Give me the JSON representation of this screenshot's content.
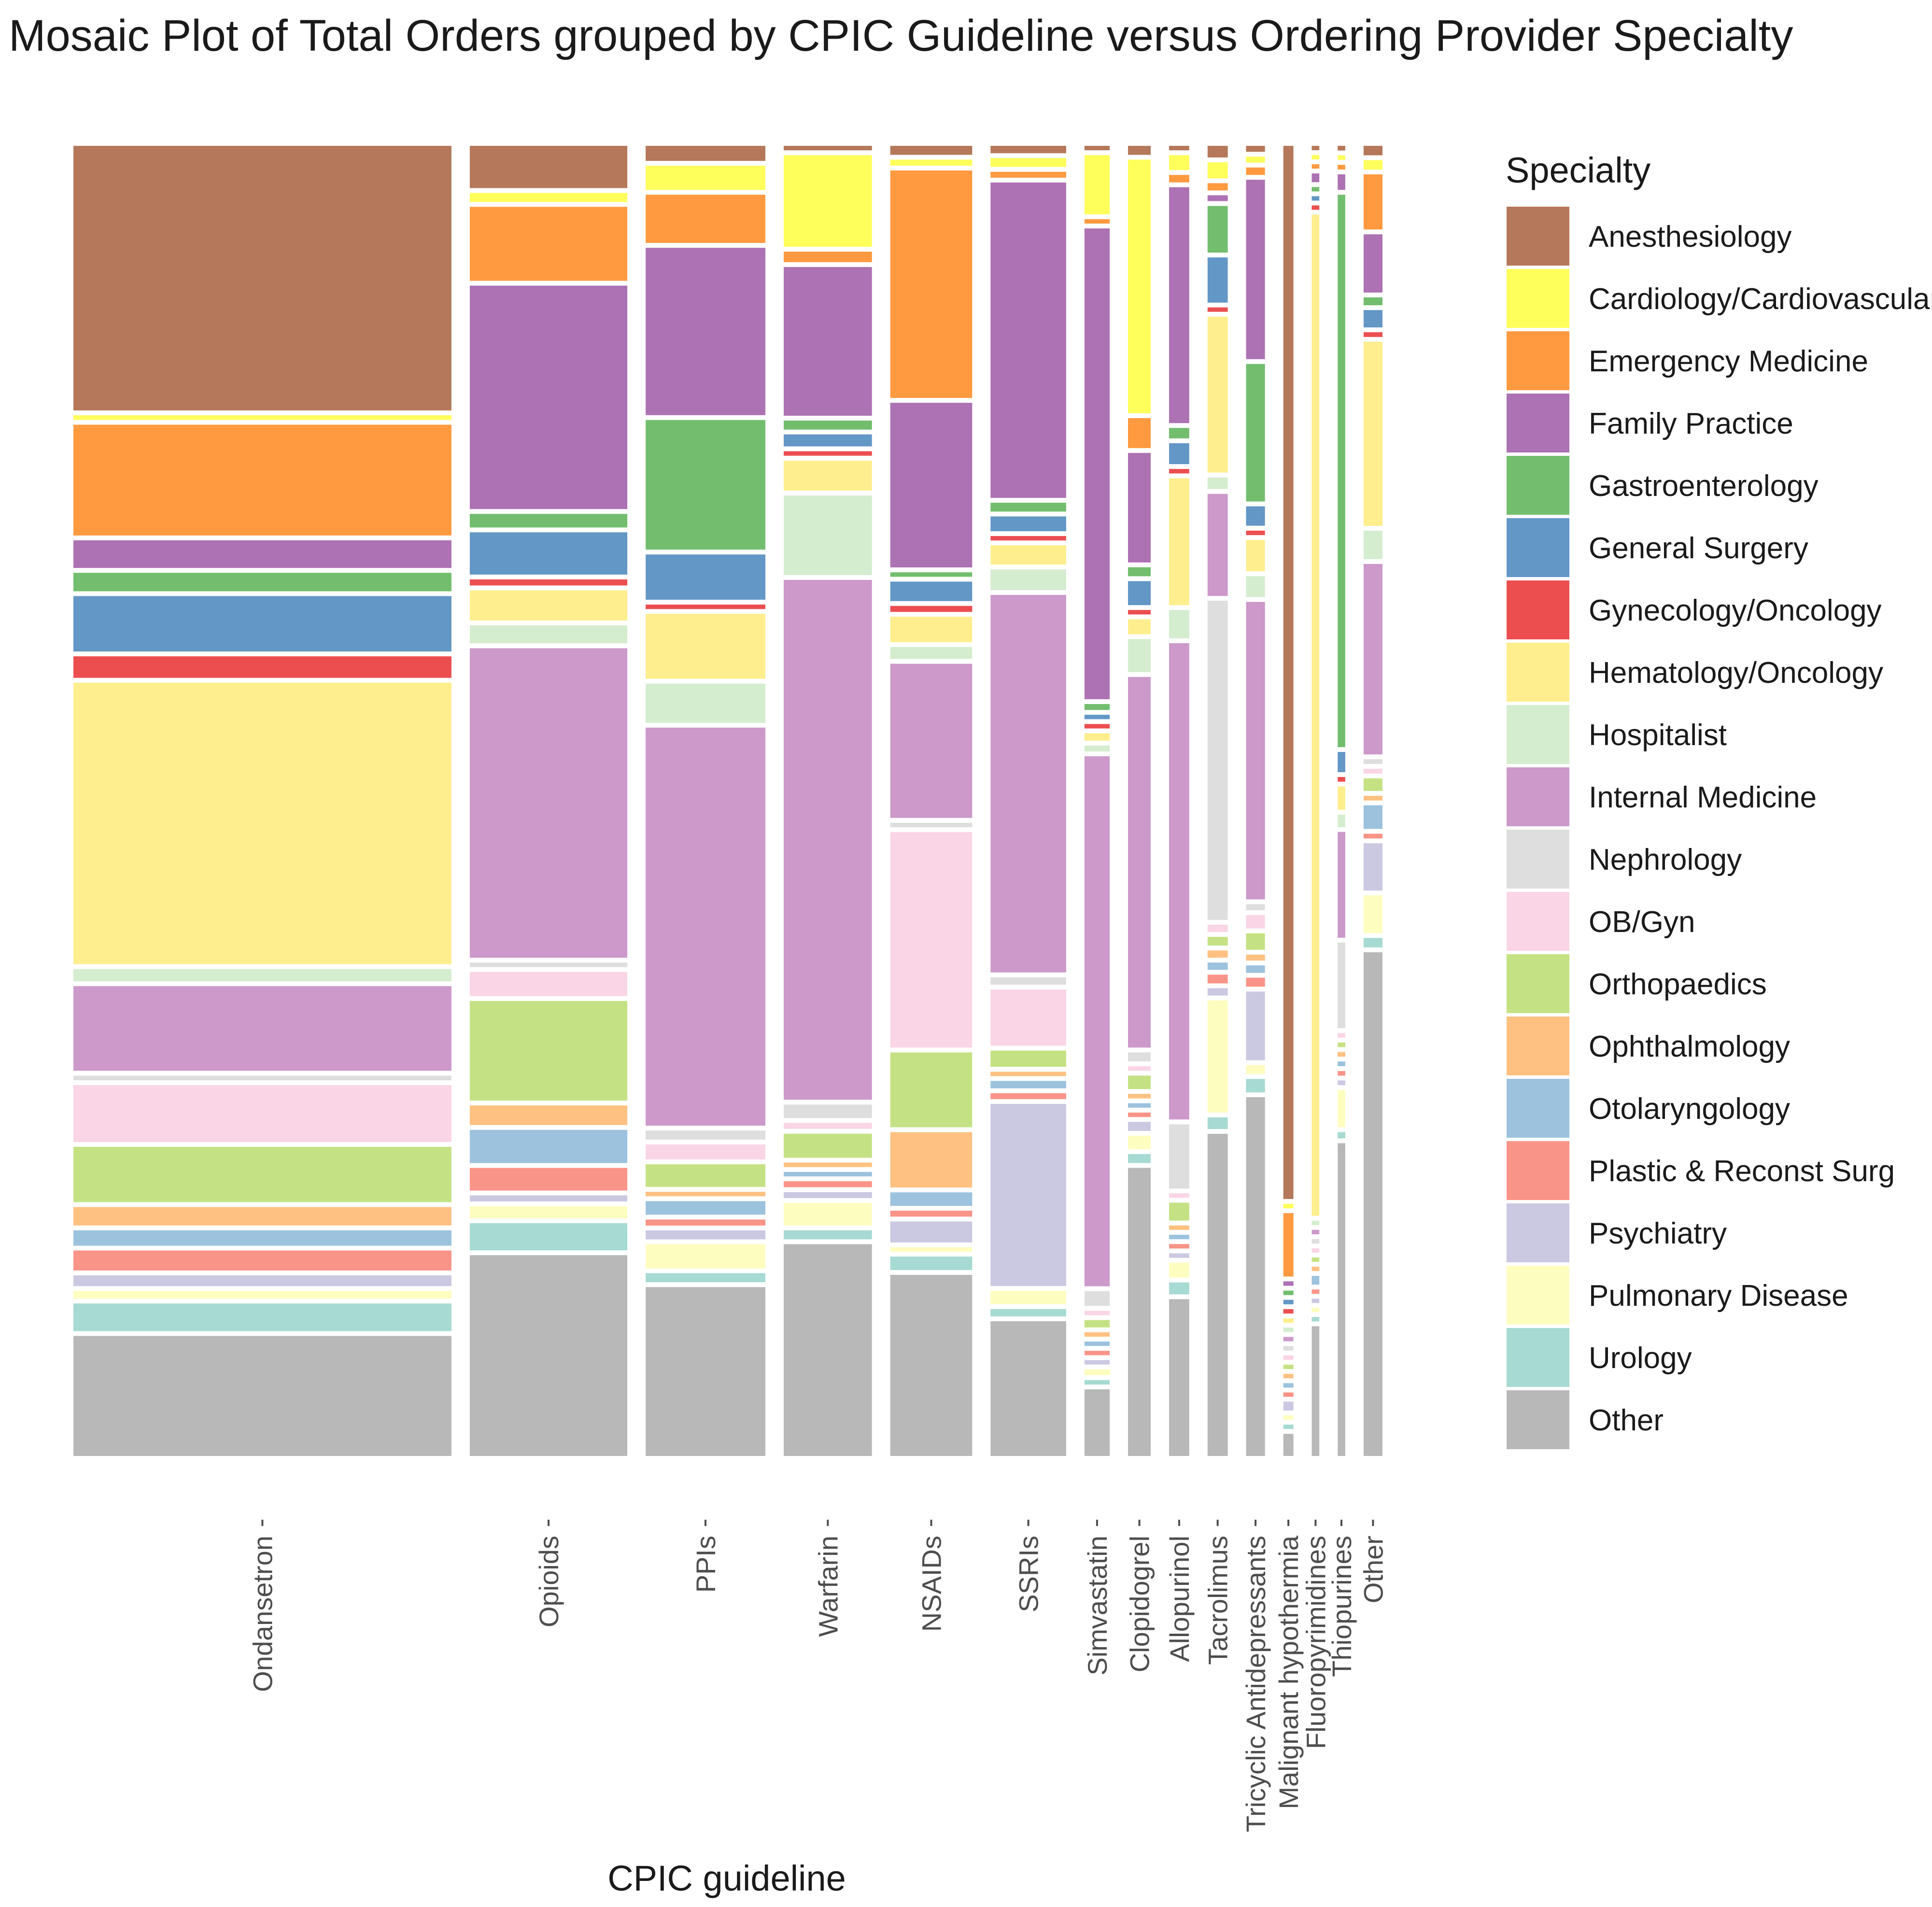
{
  "chart_data": {
    "type": "mosaic",
    "title": "Mosaic Plot of Total Orders grouped by CPIC Guideline versus Ordering Provider Specialty",
    "xlabel": "CPIC guideline",
    "legend_title": "Specialty",
    "legend_position": "right",
    "specialties": [
      {
        "name": "Anesthesiology",
        "color": "#B5785A"
      },
      {
        "name": "Cardiology/Cardiovascular",
        "color": "#FFFF5C"
      },
      {
        "name": "Emergency Medicine",
        "color": "#FF9A40"
      },
      {
        "name": "Family Practice",
        "color": "#AD72B3"
      },
      {
        "name": "Gastroenterology",
        "color": "#72BE6E"
      },
      {
        "name": "General Surgery",
        "color": "#6397C6"
      },
      {
        "name": "Gynecology/Oncology",
        "color": "#EC4E50"
      },
      {
        "name": "Hematology/Oncology",
        "color": "#FFEE8E"
      },
      {
        "name": "Hospitalist",
        "color": "#D4EDCF"
      },
      {
        "name": "Internal Medicine",
        "color": "#CC99CA"
      },
      {
        "name": "Nephrology",
        "color": "#DEDEDE"
      },
      {
        "name": "OB/Gyn",
        "color": "#FAD5E6"
      },
      {
        "name": "Orthopaedics",
        "color": "#C4E284"
      },
      {
        "name": "Ophthalmology",
        "color": "#FFC182"
      },
      {
        "name": "Otolaryngology",
        "color": "#9CC2DE"
      },
      {
        "name": "Plastic & Reconst Surg",
        "color": "#F99488"
      },
      {
        "name": "Psychiatry",
        "color": "#CBC8E2"
      },
      {
        "name": "Pulmonary Disease",
        "color": "#FEFDC0"
      },
      {
        "name": "Urology",
        "color": "#A6DAD2"
      },
      {
        "name": "Other",
        "color": "#B8B8B8"
      }
    ],
    "guidelines": [
      {
        "name": "Ondansetron",
        "width": 30.0,
        "values": [
          17.2,
          0.3,
          7.2,
          1.8,
          1.2,
          3.6,
          1.4,
          18.3,
          0.8,
          5.5,
          0.3,
          3.7,
          3.6,
          1.2,
          1.0,
          1.3,
          0.7,
          0.5,
          1.8,
          7.8
        ]
      },
      {
        "name": "Opioids",
        "width": 12.5,
        "values": [
          2.8,
          0.6,
          4.9,
          14.8,
          0.9,
          2.8,
          0.4,
          2.0,
          1.2,
          20.5,
          0.3,
          1.6,
          6.6,
          1.3,
          2.2,
          1.5,
          0.4,
          0.8,
          1.8,
          13.3
        ]
      },
      {
        "name": "PPIs",
        "width": 9.5,
        "values": [
          1.0,
          1.6,
          3.2,
          11.1,
          8.6,
          3.0,
          0.3,
          4.3,
          2.6,
          26.4,
          0.6,
          1.0,
          1.5,
          0.3,
          0.9,
          0.4,
          0.6,
          1.6,
          0.6,
          11.2
        ]
      },
      {
        "name": "Warfarin",
        "width": 7.0,
        "values": [
          0.3,
          6.1,
          0.7,
          9.9,
          0.6,
          0.8,
          0.3,
          2.0,
          5.3,
          34.6,
          0.9,
          0.4,
          1.6,
          0.3,
          0.3,
          0.4,
          0.4,
          1.5,
          0.6,
          14.1
        ]
      },
      {
        "name": "NSAIDs",
        "width": 6.5,
        "values": [
          0.6,
          0.4,
          15.2,
          11.0,
          0.3,
          1.3,
          0.4,
          1.7,
          0.8,
          10.3,
          0.3,
          14.4,
          5.0,
          3.7,
          0.9,
          0.4,
          1.4,
          0.3,
          0.9,
          12.1
        ]
      },
      {
        "name": "SSRIs",
        "width": 6.0,
        "values": [
          0.5,
          0.6,
          0.4,
          21.3,
          0.6,
          1.0,
          0.3,
          1.3,
          1.4,
          25.5,
          0.5,
          3.8,
          1.1,
          0.3,
          0.5,
          0.4,
          12.3,
          0.9,
          0.5,
          9.1
        ]
      },
      {
        "name": "Simvastatin",
        "width": 2.0,
        "values": [
          0.3,
          4.0,
          0.3,
          31.8,
          0.4,
          0.3,
          0.3,
          0.5,
          0.4,
          35.8,
          1.0,
          0.3,
          0.5,
          0.3,
          0.3,
          0.3,
          0.3,
          0.4,
          0.3,
          4.5
        ]
      },
      {
        "name": "Clopidogrel",
        "width": 1.8,
        "values": [
          0.6,
          16.9,
          2.0,
          7.3,
          0.6,
          1.6,
          0.3,
          1.0,
          2.2,
          24.7,
          0.6,
          0.3,
          0.9,
          0.3,
          0.3,
          0.3,
          0.6,
          0.9,
          0.6,
          19.2
        ]
      },
      {
        "name": "Allopurinol",
        "width": 1.6,
        "values": [
          0.3,
          1.0,
          0.5,
          15.8,
          0.7,
          1.4,
          0.3,
          8.5,
          1.9,
          31.9,
          4.3,
          0.3,
          1.2,
          0.3,
          0.3,
          0.3,
          0.3,
          1.0,
          0.8,
          10.5
        ]
      },
      {
        "name": "Tacrolimus",
        "width": 1.6,
        "values": [
          0.8,
          1.1,
          0.5,
          0.4,
          3.2,
          3.1,
          0.3,
          10.7,
          0.8,
          7.0,
          21.9,
          0.5,
          0.6,
          0.5,
          0.5,
          0.6,
          0.5,
          7.7,
          0.8,
          22.1
        ]
      },
      {
        "name": "Tricyclic Antidepressants",
        "width": 1.5,
        "values": [
          0.4,
          0.4,
          0.5,
          12.0,
          9.2,
          1.3,
          0.3,
          2.1,
          1.4,
          19.9,
          0.4,
          0.9,
          1.1,
          0.4,
          0.5,
          0.6,
          4.6,
          0.6,
          0.9,
          24.0
        ]
      },
      {
        "name": "Malignant hypothermia",
        "width": 0.8,
        "values": [
          71.4,
          0.3,
          4.3,
          0.3,
          0.3,
          0.3,
          0.3,
          0.3,
          0.3,
          0.3,
          0.3,
          0.3,
          0.3,
          0.3,
          0.3,
          0.3,
          0.6,
          0.3,
          0.3,
          1.5
        ]
      },
      {
        "name": "Fluoropyrimidines",
        "width": 0.6,
        "values": [
          0.3,
          0.3,
          0.3,
          0.6,
          0.3,
          0.3,
          0.3,
          68.7,
          0.3,
          0.3,
          0.3,
          0.3,
          0.3,
          0.3,
          0.6,
          0.3,
          0.3,
          0.3,
          0.3,
          8.9
        ]
      },
      {
        "name": "Thiopurines",
        "width": 0.6,
        "values": [
          0.3,
          0.3,
          0.3,
          1.0,
          35.5,
          1.3,
          0.3,
          1.5,
          0.8,
          6.8,
          5.5,
          0.3,
          0.3,
          0.3,
          0.3,
          0.3,
          0.3,
          2.4,
          0.4,
          20.1
        ]
      },
      {
        "name": "Other",
        "width": 1.5,
        "values": [
          0.6,
          0.6,
          3.5,
          3.7,
          0.5,
          1.1,
          0.3,
          11.7,
          1.8,
          12.1,
          0.3,
          0.3,
          0.8,
          0.3,
          1.5,
          0.3,
          3.0,
          2.4,
          0.6,
          32.0
        ]
      }
    ]
  }
}
